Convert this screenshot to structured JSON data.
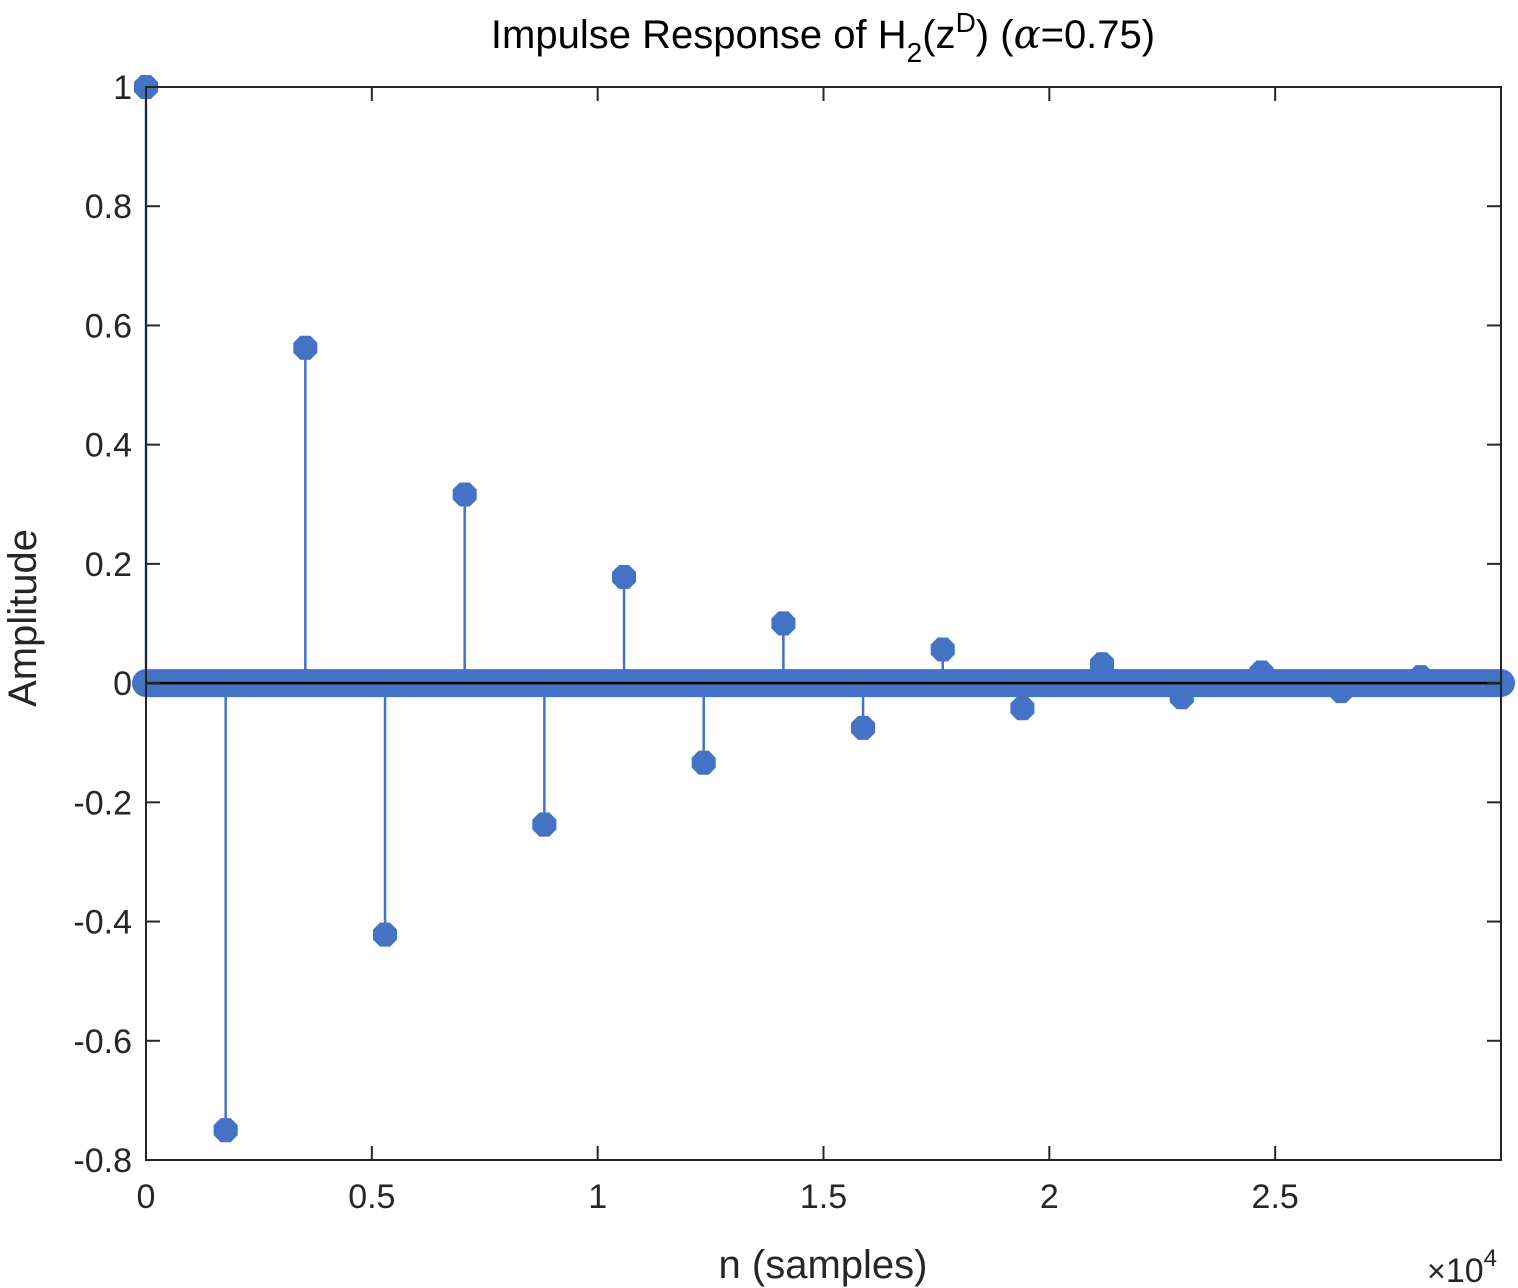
{
  "chart_data": {
    "type": "stem",
    "title": {
      "main": "Impulse Response of H",
      "sub": "2",
      "open": "(z",
      "sup": "D",
      "close": ") (",
      "greek": "α",
      "tail": "=0.75)"
    },
    "xlabel": "n (samples)",
    "ylabel": "Amplitude",
    "x_multiplier": {
      "times": "×",
      "base": "10",
      "exp": "4"
    },
    "xlim": [
      0,
      30000
    ],
    "ylim": [
      -0.8,
      1.0
    ],
    "x_ticks": [
      0,
      5000,
      10000,
      15000,
      20000,
      25000
    ],
    "x_tick_labels": [
      "0",
      "0.5",
      "1",
      "1.5",
      "2",
      "2.5"
    ],
    "y_ticks": [
      -0.8,
      -0.6,
      -0.4,
      -0.2,
      0,
      0.2,
      0.4,
      0.6,
      0.8,
      1
    ],
    "y_tick_labels": [
      "-0.8",
      "-0.6",
      "-0.4",
      "-0.2",
      "0",
      "0.2",
      "0.4",
      "0.6",
      "0.8",
      "1"
    ],
    "series": [
      {
        "x": [
          0,
          1764,
          3528,
          5292,
          7056,
          8820,
          10584,
          12348,
          14112,
          15876,
          17640,
          19404,
          21168,
          22932,
          24696,
          26460,
          28224
        ],
        "y": [
          1.0,
          -0.75,
          0.5625,
          -0.4219,
          0.3164,
          -0.2373,
          0.178,
          -0.1335,
          0.1001,
          -0.0751,
          0.0563,
          -0.0422,
          0.0317,
          -0.0238,
          0.0178,
          -0.0134,
          0.01
        ]
      }
    ],
    "baseline_zero_markers": true,
    "colors": {
      "stem": "#4472c4",
      "axes": "#262626",
      "baseline": "#000000"
    },
    "grid": false,
    "legend": "none"
  }
}
